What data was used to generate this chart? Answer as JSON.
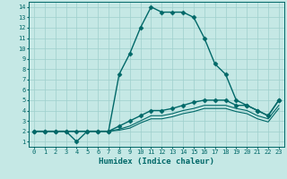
{
  "xlabel": "Humidex (Indice chaleur)",
  "background_color": "#c5e8e5",
  "grid_color": "#9ecfcc",
  "line_color": "#006868",
  "xlim": [
    -0.5,
    23.5
  ],
  "ylim": [
    0.5,
    14.5
  ],
  "xticks": [
    0,
    1,
    2,
    3,
    4,
    5,
    6,
    7,
    8,
    9,
    10,
    11,
    12,
    13,
    14,
    15,
    16,
    17,
    18,
    19,
    20,
    21,
    22,
    23
  ],
  "yticks": [
    1,
    2,
    3,
    4,
    5,
    6,
    7,
    8,
    9,
    10,
    11,
    12,
    13,
    14
  ],
  "lines": [
    {
      "x": [
        0,
        1,
        2,
        3,
        4,
        5,
        6,
        7,
        8,
        9,
        10,
        11,
        12,
        13,
        14,
        15,
        16,
        17,
        18,
        19,
        20,
        21,
        22,
        23
      ],
      "y": [
        2,
        2,
        2,
        2,
        1,
        2,
        2,
        2,
        7.5,
        9.5,
        12,
        14,
        13.5,
        13.5,
        13.5,
        13,
        11,
        8.5,
        7.5,
        5,
        4.5,
        4,
        3.5,
        5
      ],
      "marker": "D",
      "markersize": 2.5,
      "linewidth": 1.0
    },
    {
      "x": [
        0,
        1,
        2,
        3,
        4,
        5,
        6,
        7,
        8,
        9,
        10,
        11,
        12,
        13,
        14,
        15,
        16,
        17,
        18,
        19,
        20,
        21,
        22,
        23
      ],
      "y": [
        2,
        2,
        2,
        2,
        2,
        2,
        2,
        2,
        2.5,
        3,
        3.5,
        4,
        4,
        4.2,
        4.5,
        4.8,
        5,
        5,
        5,
        4.5,
        4.5,
        4,
        3.5,
        5
      ],
      "marker": "D",
      "markersize": 2.5,
      "linewidth": 1.0
    },
    {
      "x": [
        0,
        1,
        2,
        3,
        4,
        5,
        6,
        7,
        8,
        9,
        10,
        11,
        12,
        13,
        14,
        15,
        16,
        17,
        18,
        19,
        20,
        21,
        22,
        23
      ],
      "y": [
        2,
        2,
        2,
        2,
        2,
        2,
        2,
        2,
        2.2,
        2.5,
        3,
        3.5,
        3.5,
        3.7,
        4,
        4.2,
        4.5,
        4.5,
        4.5,
        4.2,
        4,
        3.5,
        3.2,
        4.5
      ],
      "marker": null,
      "markersize": 0,
      "linewidth": 0.8
    },
    {
      "x": [
        0,
        1,
        2,
        3,
        4,
        5,
        6,
        7,
        8,
        9,
        10,
        11,
        12,
        13,
        14,
        15,
        16,
        17,
        18,
        19,
        20,
        21,
        22,
        23
      ],
      "y": [
        2,
        2,
        2,
        2,
        2,
        2,
        2,
        2,
        2.1,
        2.3,
        2.8,
        3.2,
        3.2,
        3.4,
        3.7,
        3.9,
        4.2,
        4.2,
        4.2,
        3.9,
        3.7,
        3.2,
        2.9,
        4.2
      ],
      "marker": null,
      "markersize": 0,
      "linewidth": 0.8
    }
  ],
  "tick_fontsize": 5.0,
  "xlabel_fontsize": 6.5
}
